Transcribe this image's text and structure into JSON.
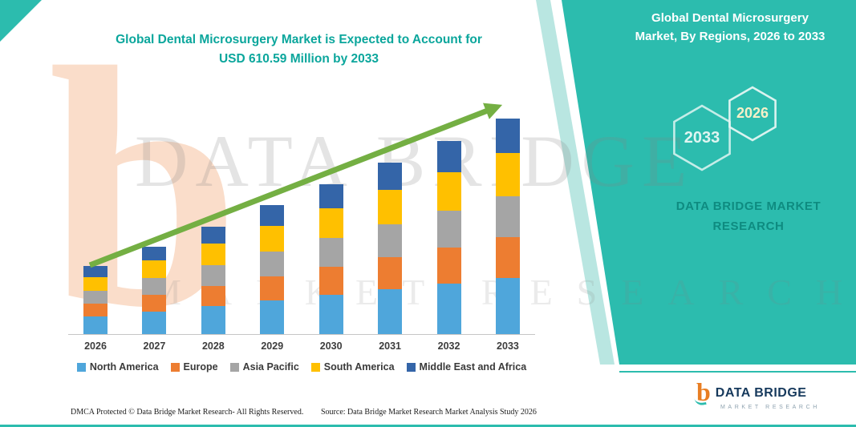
{
  "header": {
    "title_line1": "Global Dental Microsurgery Market is Expected to Account for",
    "title_line2": "USD 610.59 Million by 2033"
  },
  "side_panel": {
    "title_line1": "Global Dental Microsurgery",
    "title_line2": "Market, By Regions, 2026 to 2033",
    "hexagon_back_label": "2033",
    "hexagon_front_label": "2026",
    "brand_line1": "DATA BRIDGE MARKET",
    "brand_line2": "RESEARCH"
  },
  "watermark": {
    "line1": "DATA BRIDGE",
    "line2": "MARKET RESEARCH",
    "logo_letter": "b"
  },
  "chart_data": {
    "type": "bar",
    "stacked": true,
    "title": "Global Dental Microsurgery Market, By Regions, 2026 to 2033",
    "unit": "USD Million",
    "categories": [
      "2026",
      "2027",
      "2028",
      "2029",
      "2030",
      "2031",
      "2032",
      "2033"
    ],
    "series": [
      {
        "name": "North America",
        "color": "#4FA6DB",
        "values": [
          50.1,
          64.7,
          79.4,
          95.3,
          110.6,
          126.4,
          142.3,
          158.8
        ]
      },
      {
        "name": "Europe",
        "color": "#ED7D31",
        "values": [
          36.6,
          47.3,
          58.0,
          69.6,
          80.8,
          92.4,
          104.0,
          116.0
        ]
      },
      {
        "name": "Asia Pacific",
        "color": "#A5A5A5",
        "values": [
          36.6,
          47.3,
          58.0,
          69.6,
          80.8,
          92.4,
          104.0,
          116.0
        ]
      },
      {
        "name": "South America",
        "color": "#FFC000",
        "values": [
          38.5,
          49.7,
          61.1,
          73.3,
          85.0,
          97.3,
          109.5,
          122.1
        ]
      },
      {
        "name": "Middle East and Africa",
        "color": "#3465A8",
        "values": [
          30.8,
          39.8,
          48.8,
          58.6,
          68.0,
          77.8,
          87.6,
          97.7
        ]
      }
    ],
    "totals": [
      192.6,
      248.8,
      305.3,
      366.4,
      425.2,
      486.3,
      547.4,
      610.59
    ],
    "ylim": [
      0,
      650
    ],
    "legend_position": "bottom",
    "grid": false,
    "annotations": [
      "upward trend arrow"
    ]
  },
  "footer": {
    "dmca": "DMCA Protected © Data Bridge Market Research-  All Rights Reserved.",
    "source": "Source: Data Bridge Market Research  Market Analysis Study 2026"
  },
  "logo": {
    "letter": "b",
    "name": "DATA BRIDGE",
    "sub": "MARKET RESEARCH"
  },
  "colors": {
    "teal": "#2CBCAE",
    "title_teal": "#0BA69C",
    "arrow_green": "#74AF43"
  }
}
